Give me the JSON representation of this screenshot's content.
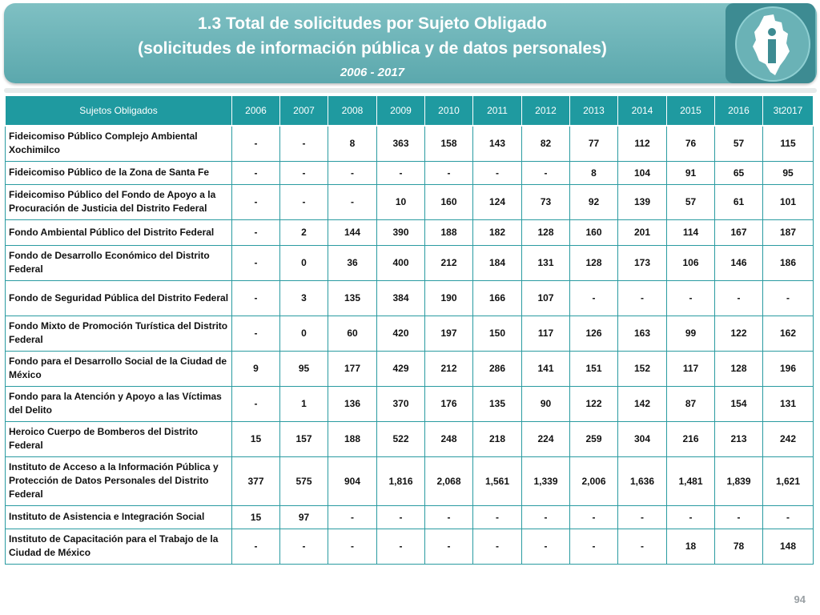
{
  "header": {
    "title_line1": "1.3 Total de solicitudes por Sujeto Obligado",
    "title_line2": "(solicitudes de información pública y de datos personales)",
    "period": "2006 - 2017"
  },
  "table": {
    "columns": [
      "Sujetos Obligados",
      "2006",
      "2007",
      "2008",
      "2009",
      "2010",
      "2011",
      "2012",
      "2013",
      "2014",
      "2015",
      "2016",
      "3t2017"
    ],
    "rows": [
      {
        "name": "Fideicomiso Público Complejo Ambiental Xochimilco",
        "values": [
          "-",
          "-",
          "8",
          "363",
          "158",
          "143",
          "82",
          "77",
          "112",
          "76",
          "57",
          "115"
        ]
      },
      {
        "name": "Fideicomiso Público de la Zona de Santa Fe",
        "values": [
          "-",
          "-",
          "-",
          "-",
          "-",
          "-",
          "-",
          "8",
          "104",
          "91",
          "65",
          "95"
        ]
      },
      {
        "name": "Fideicomiso Público del Fondo de Apoyo a la Procuración de Justicia del Distrito Federal",
        "values": [
          "-",
          "-",
          "-",
          "10",
          "160",
          "124",
          "73",
          "92",
          "139",
          "57",
          "61",
          "101"
        ]
      },
      {
        "name": "Fondo Ambiental Público del Distrito Federal",
        "values": [
          "-",
          "2",
          "144",
          "390",
          "188",
          "182",
          "128",
          "160",
          "201",
          "114",
          "167",
          "187"
        ]
      },
      {
        "name": "Fondo de Desarrollo Económico del Distrito Federal",
        "values": [
          "-",
          "0",
          "36",
          "400",
          "212",
          "184",
          "131",
          "128",
          "173",
          "106",
          "146",
          "186"
        ]
      },
      {
        "name": "Fondo de Seguridad Pública del Distrito Federal",
        "values": [
          "-",
          "3",
          "135",
          "384",
          "190",
          "166",
          "107",
          "-",
          "-",
          "-",
          "-",
          "-"
        ]
      },
      {
        "name": "Fondo Mixto de Promoción Turística del Distrito Federal",
        "values": [
          "-",
          "0",
          "60",
          "420",
          "197",
          "150",
          "117",
          "126",
          "163",
          "99",
          "122",
          "162"
        ]
      },
      {
        "name": "Fondo para el Desarrollo Social de la Ciudad de México",
        "values": [
          "9",
          "95",
          "177",
          "429",
          "212",
          "286",
          "141",
          "151",
          "152",
          "117",
          "128",
          "196"
        ]
      },
      {
        "name": "Fondo para la Atención y Apoyo a las Víctimas del Delito",
        "values": [
          "-",
          "1",
          "136",
          "370",
          "176",
          "135",
          "90",
          "122",
          "142",
          "87",
          "154",
          "131"
        ]
      },
      {
        "name": "Heroico Cuerpo de Bomberos del Distrito Federal",
        "values": [
          "15",
          "157",
          "188",
          "522",
          "248",
          "218",
          "224",
          "259",
          "304",
          "216",
          "213",
          "242"
        ]
      },
      {
        "name": "Instituto de Acceso a la Información Pública y Protección de Datos Personales del Distrito Federal",
        "values": [
          "377",
          "575",
          "904",
          "1,816",
          "2,068",
          "1,561",
          "1,339",
          "2,006",
          "1,636",
          "1,481",
          "1,839",
          "1,621"
        ]
      },
      {
        "name": "Instituto de Asistencia e Integración Social",
        "values": [
          "15",
          "97",
          "-",
          "-",
          "-",
          "-",
          "-",
          "-",
          "-",
          "-",
          "-",
          "-"
        ]
      },
      {
        "name": "Instituto de Capacitación para el Trabajo de la Ciudad de México",
        "values": [
          "-",
          "-",
          "-",
          "-",
          "-",
          "-",
          "-",
          "-",
          "-",
          "18",
          "78",
          "148"
        ]
      }
    ]
  },
  "footer": {
    "page_number": "94"
  },
  "colors": {
    "banner": "#6bb4b8",
    "table_header": "#1f9aa0",
    "cell_border": "#2a9ba1"
  },
  "icons": {
    "logo": "info-institute-logo-icon"
  }
}
